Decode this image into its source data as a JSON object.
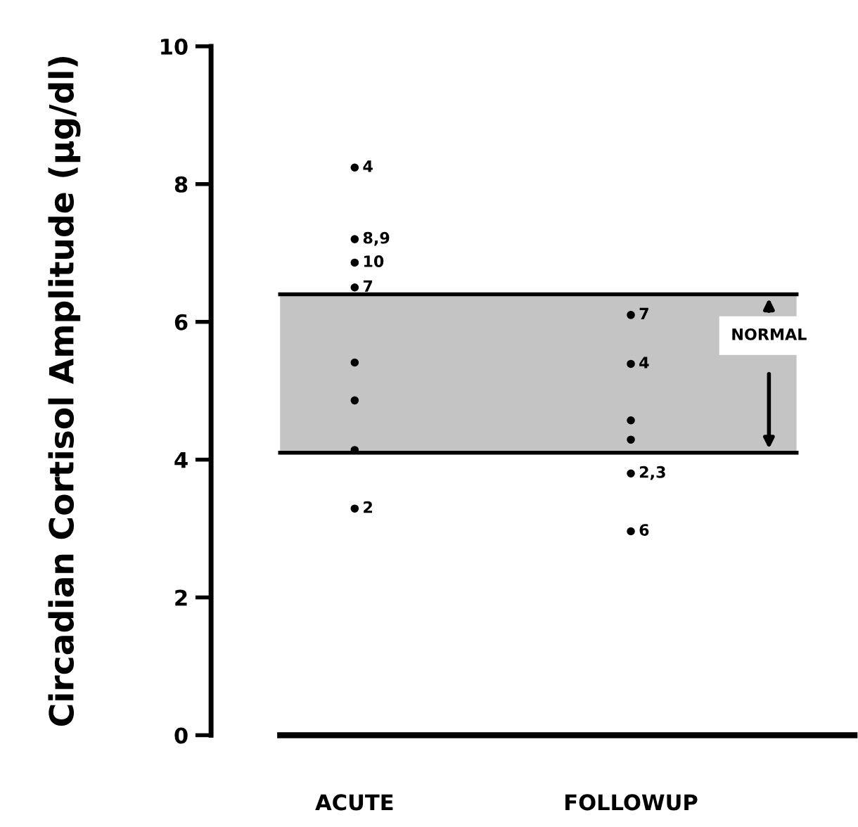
{
  "chart_data": {
    "type": "scatter",
    "ylabel": "Circadian Cortisol Amplitude (µg/dl)",
    "categories": [
      "ACUTE",
      "FOLLOWUP"
    ],
    "series": [
      {
        "color": "#000000",
        "x": [
          "ACUTE",
          "ACUTE",
          "ACUTE",
          "ACUTE",
          "ACUTE",
          "ACUTE",
          "ACUTE",
          "ACUTE",
          "FOLLOWUP",
          "FOLLOWUP",
          "FOLLOWUP",
          "FOLLOWUP",
          "FOLLOWUP",
          "FOLLOWUP"
        ],
        "values": [
          8.24,
          7.2,
          6.86,
          6.5,
          5.41,
          4.86,
          4.14,
          3.29,
          6.1,
          5.39,
          4.57,
          4.29,
          3.8,
          2.96
        ]
      }
    ],
    "annotations": [
      {
        "text": "4",
        "x": "ACUTE",
        "y": 8.24
      },
      {
        "text": "8,9",
        "x": "ACUTE",
        "y": 7.2
      },
      {
        "text": "10",
        "x": "ACUTE",
        "y": 6.86
      },
      {
        "text": "7",
        "x": "ACUTE",
        "y": 6.5
      },
      {
        "text": "2",
        "x": "ACUTE",
        "y": 3.29
      },
      {
        "text": "7",
        "x": "FOLLOWUP",
        "y": 6.1
      },
      {
        "text": "4",
        "x": "FOLLOWUP",
        "y": 5.39
      },
      {
        "text": "2,3",
        "x": "FOLLOWUP",
        "y": 3.8
      },
      {
        "text": "6",
        "x": "FOLLOWUP",
        "y": 2.96
      }
    ],
    "ylim": [
      0,
      10
    ],
    "yticks": [
      0,
      2,
      4,
      6,
      8,
      10
    ],
    "grid": false,
    "ref_lines": [
      {
        "axis": "y",
        "value": 6.4,
        "color": "#000000"
      },
      {
        "axis": "y",
        "value": 4.1,
        "color": "#000000"
      }
    ],
    "bands": [
      {
        "axis": "y",
        "from": 4.1,
        "to": 6.4,
        "label": "NORMAL",
        "color": "#c4c4c4"
      }
    ]
  }
}
